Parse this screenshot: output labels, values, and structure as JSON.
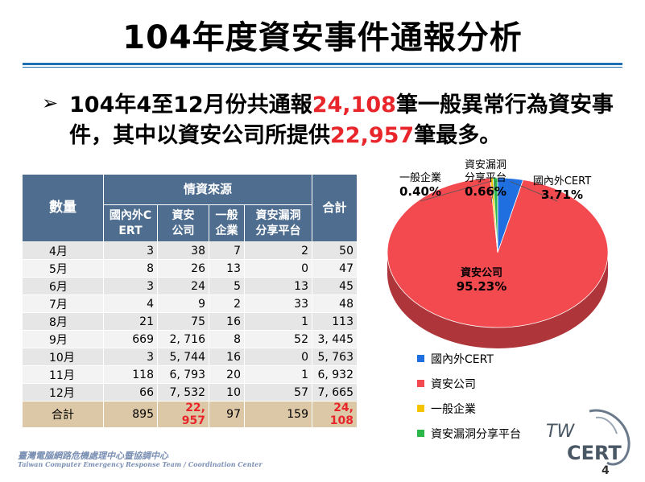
{
  "slide": {
    "title": "104年度資安事件通報分析",
    "bullet_mark": "➢",
    "summary": {
      "part1": "104年4至12月份共通報",
      "num1": "24,108",
      "part2": "筆一般異常行為資安事件，其中以資安公司所提供",
      "num2": "22,957",
      "part3": "筆最多。"
    },
    "page_number": "4",
    "footer_cn": "臺灣電腦網路危機處理中心暨協調中心",
    "footer_en": "Taiwan Computer Emergency Response Team / Coordination Center",
    "logo_text": {
      "top": "TW",
      "bottom": "CERT"
    }
  },
  "table": {
    "header": {
      "quantity": "數量",
      "source_group": "情資來源",
      "total": "合計",
      "cols": [
        "國內外CERT",
        "資安公司",
        "一般企業",
        "資安漏洞分享平台"
      ]
    },
    "rows": [
      {
        "month": "4月",
        "v": [
          "3",
          "38",
          "7",
          "2"
        ],
        "total": "50"
      },
      {
        "month": "5月",
        "v": [
          "8",
          "26",
          "13",
          "0"
        ],
        "total": "47"
      },
      {
        "month": "6月",
        "v": [
          "3",
          "24",
          "5",
          "13"
        ],
        "total": "45"
      },
      {
        "month": "7月",
        "v": [
          "4",
          "9",
          "2",
          "33"
        ],
        "total": "48"
      },
      {
        "month": "8月",
        "v": [
          "21",
          "75",
          "16",
          "1"
        ],
        "total": "113"
      },
      {
        "month": "9月",
        "v": [
          "669",
          "2, 716",
          "8",
          "52"
        ],
        "total": "3, 445"
      },
      {
        "month": "10月",
        "v": [
          "3",
          "5, 744",
          "16",
          "0"
        ],
        "total": "5, 763"
      },
      {
        "month": "11月",
        "v": [
          "118",
          "6, 793",
          "20",
          "1"
        ],
        "total": "6, 932"
      },
      {
        "month": "12月",
        "v": [
          "66",
          "7, 532",
          "10",
          "57"
        ],
        "total": "7, 665"
      }
    ],
    "sum_row": {
      "label": "合計",
      "v": [
        "895",
        "22, 957",
        "97",
        "159"
      ],
      "total": "24, 108"
    }
  },
  "chart_data": {
    "type": "pie",
    "slices": [
      {
        "name": "國內外CERT",
        "value": 3.71,
        "label": "3.71%",
        "color": "#1f6fe0"
      },
      {
        "name": "資安公司",
        "value": 95.23,
        "label": "95.23%",
        "color": "#f24a4f"
      },
      {
        "name": "一般企業",
        "value": 0.4,
        "label": "0.40%",
        "color": "#f5c400"
      },
      {
        "name": "資安漏洞分享平台",
        "value": 0.66,
        "label": "0.66%",
        "color": "#2bb84a"
      }
    ],
    "legend_placement": "bottom"
  }
}
